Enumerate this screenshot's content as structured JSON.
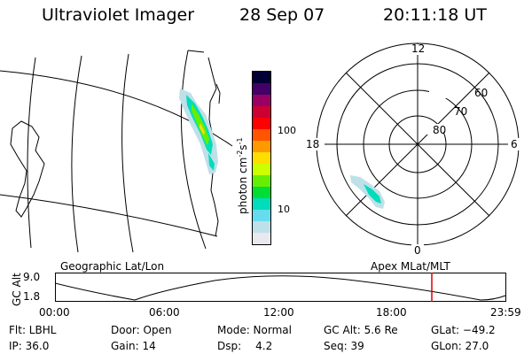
{
  "header": {
    "instrument": "Ultraviolet Imager",
    "date": "28 Sep 07",
    "time": "20:11:18 UT"
  },
  "colorbar": {
    "unit": "photon cm",
    "exp1": "-2",
    "s": "s",
    "exp2": "-1",
    "ticks": [
      "100",
      "10"
    ],
    "colors": [
      "#000033",
      "#440066",
      "#990066",
      "#cc0033",
      "#ff0000",
      "#ff5500",
      "#ff9900",
      "#ffdd00",
      "#ccff00",
      "#66ee00",
      "#00dd33",
      "#00ddbb",
      "#66ddee",
      "#bfe0e8",
      "#e8e8ee"
    ]
  },
  "geographic_map": {
    "caption": "Geographic Lat/Lon"
  },
  "polar_plot": {
    "caption": "Apex MLat/MLT",
    "mlt_labels": [
      "12",
      "18",
      "6",
      "0"
    ],
    "lat_labels": [
      "60",
      "70",
      "80"
    ]
  },
  "altitude_plot": {
    "ylabel": "GC Alt",
    "y_ticks": [
      "9.0",
      "1.8"
    ],
    "x_ticks": [
      "00:00",
      "06:00",
      "12:00",
      "18:00",
      "23:59"
    ],
    "marker_color": "#dd0000"
  },
  "info": {
    "filter": "Flt: LBHL",
    "door": "Door: Open",
    "mode": "Mode: Normal",
    "gc_alt": "GC Alt: 5.6 Re",
    "glat": "GLat: −49.2",
    "ip": "IP: 36.0",
    "gain": "Gain: 14",
    "dsp_label": "Dsp:",
    "dsp_value": "4.2",
    "seq": "Seq: 39",
    "glon": "GLon: 27.0"
  }
}
